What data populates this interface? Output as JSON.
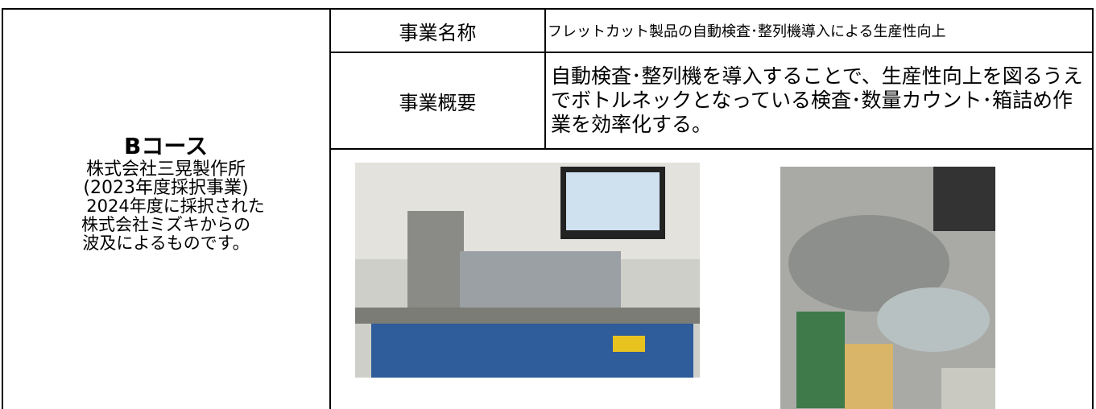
{
  "left": {
    "course": "Bコース",
    "lines": [
      "株式会社三晃製作所",
      "(2023年度採択事業)",
      "2024年度に採択された",
      "株式会社ミズキからの",
      "波及によるものです。"
    ]
  },
  "rows": [
    {
      "label": "事業名称",
      "value": "フレットカット製品の自動検査･整列機導入による生産性向上"
    },
    {
      "label": "事業概要",
      "value": "自動検査･整列機を導入することで、生産性向上を図るうえでボトルネックとなっている検査･数量カウント･箱詰め作業を効率化する。"
    }
  ]
}
